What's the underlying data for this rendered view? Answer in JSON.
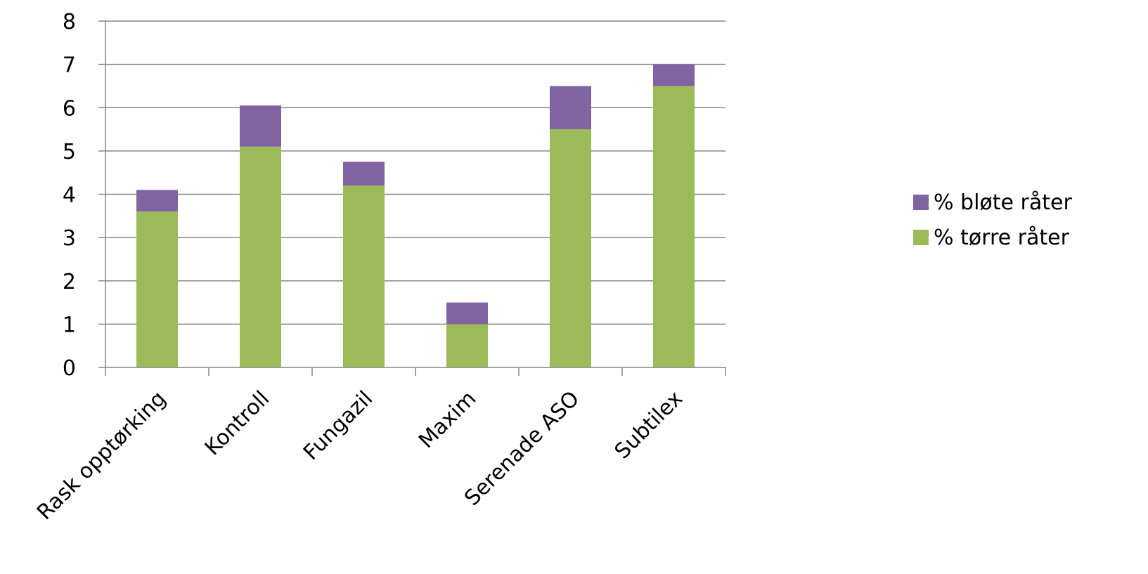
{
  "chart_data": {
    "type": "bar",
    "stacked": true,
    "categories": [
      "Rask opptørking",
      "Kontroll",
      "Fungazil",
      "Maxim",
      "Serenade ASO",
      "Subtilex"
    ],
    "series": [
      {
        "name": "% tørre råter",
        "values": [
          3.6,
          5.1,
          4.2,
          1.0,
          5.5,
          6.5
        ],
        "color": "#9bbb59"
      },
      {
        "name": "% bløte råter",
        "values": [
          0.5,
          0.95,
          0.55,
          0.5,
          1.0,
          0.5
        ],
        "color": "#8064a2"
      }
    ],
    "ylim": [
      0,
      8
    ],
    "yticks": [
      "0",
      "1",
      "2",
      "3",
      "4",
      "5",
      "6",
      "7",
      "8"
    ],
    "grid": true,
    "legend_position": "right",
    "legend_order": [
      1,
      0
    ]
  }
}
